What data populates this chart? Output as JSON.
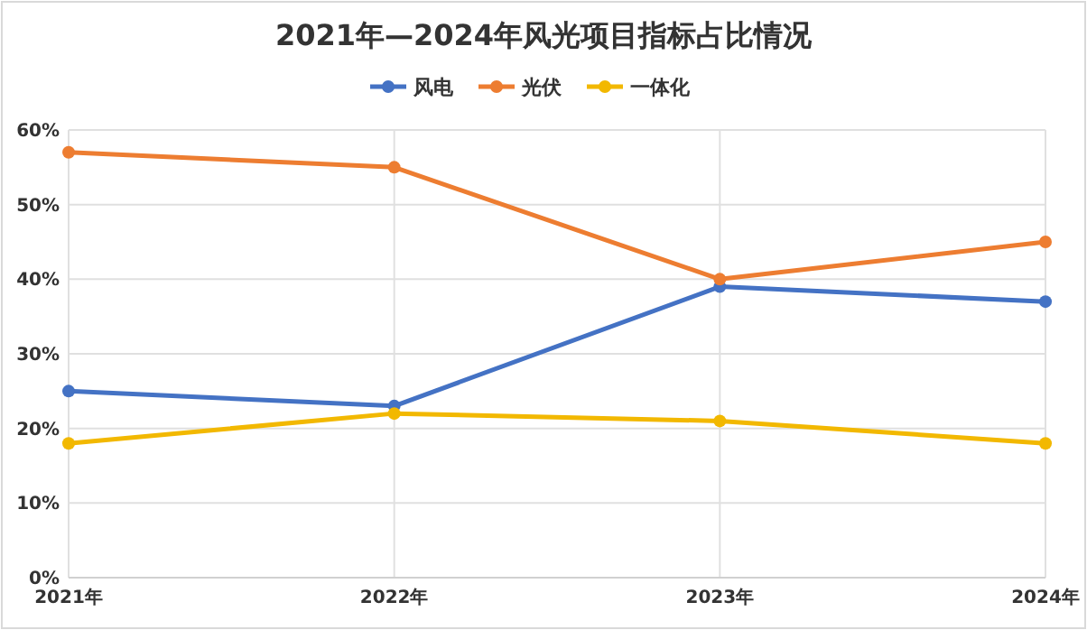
{
  "chart_data": {
    "type": "line",
    "title": "2021年—2024年风光项目指标占比情况",
    "categories": [
      "2021年",
      "2022年",
      "2023年",
      "2024年"
    ],
    "series": [
      {
        "name": "风电",
        "color": "#4472c4",
        "values": [
          25,
          23,
          39,
          37
        ]
      },
      {
        "name": "光伏",
        "color": "#ed7d31",
        "values": [
          57,
          55,
          40,
          45
        ]
      },
      {
        "name": "一体化",
        "color": "#f2b800",
        "values": [
          18,
          22,
          21,
          18
        ]
      }
    ],
    "ylim": [
      0,
      60
    ],
    "yticks": [
      {
        "value": 0,
        "label": "0%"
      },
      {
        "value": 10,
        "label": "10%"
      },
      {
        "value": 20,
        "label": "20%"
      },
      {
        "value": 30,
        "label": "30%"
      },
      {
        "value": 40,
        "label": "40%"
      },
      {
        "value": 50,
        "label": "50%"
      },
      {
        "value": 60,
        "label": "60%"
      }
    ],
    "grid": true,
    "legend": "top",
    "marker": "circle",
    "line_style": "solid"
  }
}
